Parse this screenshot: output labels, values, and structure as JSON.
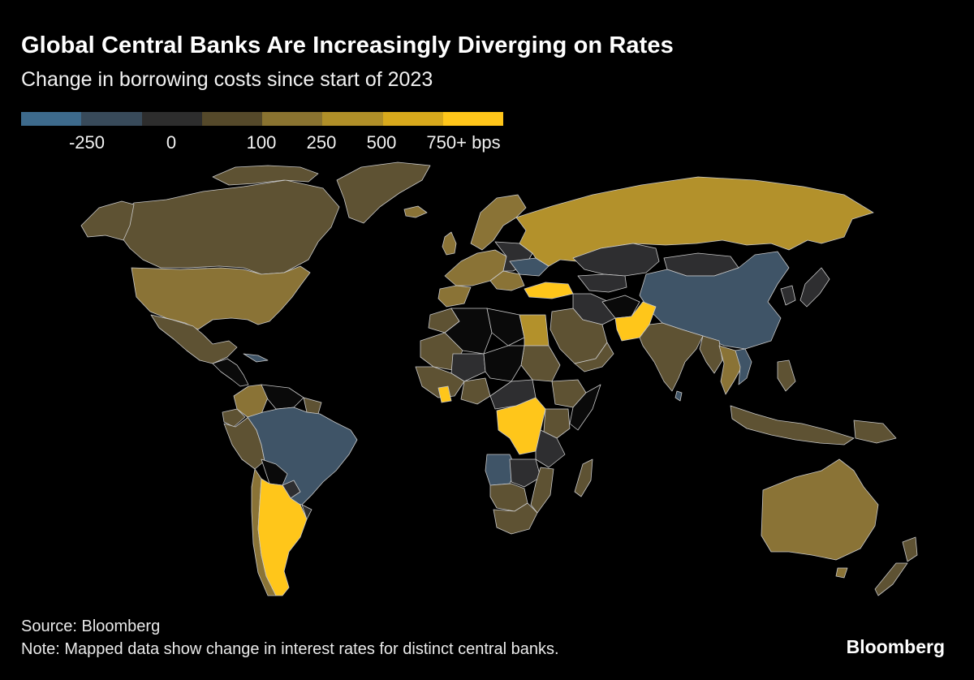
{
  "title": "Global Central Banks Are Increasingly Diverging on Rates",
  "subtitle": "Change in borrowing costs since start of 2023",
  "legend": {
    "colors": [
      "#3d6a8c",
      "#384a5a",
      "#2d2d2d",
      "#55492a",
      "#8a7330",
      "#b08f28",
      "#d8a91c",
      "#ffc61a"
    ],
    "labels": [
      "-250",
      "0",
      "100",
      "250",
      "500",
      "750+ bps"
    ]
  },
  "palette": {
    "cut": "#3f5467",
    "flat": "#2e2e30",
    "small": "#5e5233",
    "medium": "#8a7336",
    "large": "#b3912b",
    "extreme": "#ffc61a",
    "nodata": "#0a0a0a",
    "border": "#c9c9c9"
  },
  "source": "Source: Bloomberg",
  "note": "Note: Mapped data show change in interest rates for distinct central banks.",
  "brand": "Bloomberg"
}
